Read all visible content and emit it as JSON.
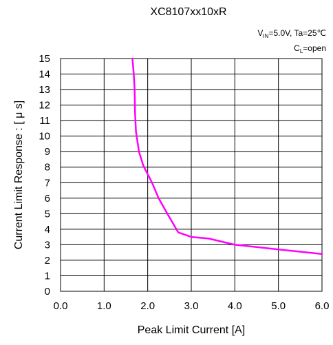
{
  "chart_data": {
    "type": "line",
    "title": "XC8107xx10xR",
    "conditions": [
      {
        "main": "V",
        "sub": "IN",
        "rest": "=5.0V, Ta=25℃"
      },
      {
        "main": "C",
        "sub": "L",
        "rest": "=open"
      }
    ],
    "xlabel": "Peak Limit Current [A]",
    "ylabel": "Current Limit Response : [ μ s]",
    "xlim": [
      0,
      6
    ],
    "ylim": [
      0,
      15
    ],
    "x_ticks": [
      "0.0",
      "1.0",
      "2.0",
      "3.0",
      "4.0",
      "5.0",
      "6.0"
    ],
    "y_ticks": [
      "0",
      "1",
      "2",
      "3",
      "4",
      "5",
      "6",
      "7",
      "8",
      "9",
      "10",
      "11",
      "12",
      "13",
      "14",
      "15"
    ],
    "grid": true,
    "series": [
      {
        "color": "#ff00ff",
        "x": [
          1.65,
          1.68,
          1.7,
          1.71,
          1.73,
          1.8,
          1.9,
          2.1,
          2.25,
          2.45,
          2.7,
          3.0,
          3.4,
          3.7,
          4.0,
          4.5,
          5.0,
          5.5,
          6.0
        ],
        "y": [
          15.0,
          14.0,
          13.0,
          11.5,
          10.3,
          9.0,
          8.1,
          7.0,
          6.0,
          5.0,
          3.8,
          3.5,
          3.4,
          3.2,
          3.0,
          2.85,
          2.7,
          2.55,
          2.4
        ]
      }
    ]
  }
}
